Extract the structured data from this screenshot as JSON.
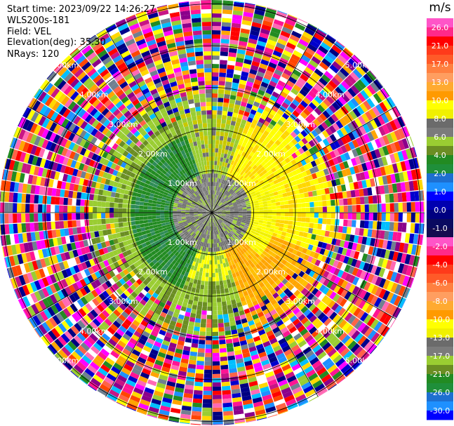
{
  "header": {
    "start_time": "Start time: 2023/09/22 14:26:27",
    "instrument": "WLS200s-181",
    "field": "Field: VEL",
    "elevation": "Elevation(deg): 35.30",
    "nrays": "NRays: 120"
  },
  "chart_data": {
    "type": "heatmap",
    "projection": "polar-ppi",
    "field": "VEL",
    "unit_label": "m/s",
    "n_rays": 120,
    "range_rings_km": [
      1.0,
      2.0,
      3.0,
      4.0,
      5.0
    ],
    "range_ring_labels": [
      "1.00km",
      "2.00km",
      "3.00km",
      "4.00km",
      "5.00km"
    ],
    "colorbar_ticks": [
      "26.0",
      "21.0",
      "17.0",
      "13.0",
      "10.0",
      "8.0",
      "6.0",
      "4.0",
      "2.0",
      "1.0",
      "0.0",
      "-1.0",
      "-2.0",
      "-4.0",
      "-6.0",
      "-8.0",
      "-10.0",
      "-13.0",
      "-17.0",
      "-21.0",
      "-26.0",
      "-30.0"
    ],
    "colorbar_colors": [
      "#ff55c8",
      "#ff2a8a",
      "#ff0000",
      "#ff3a1a",
      "#ff5a28",
      "#ff8040",
      "#ff9e60",
      "#ffaa30",
      "#ff9a00",
      "#ffff00",
      "#f0f000",
      "#6b6b6b",
      "#7b7b7b",
      "#9acd32",
      "#6b8e23",
      "#228b22",
      "#1f8f3a",
      "#1e6fd0",
      "#1e90ff",
      "#0000ff",
      "#0000b0",
      "#000080",
      "#0a0a60",
      "#140a50"
    ],
    "noise_palette": [
      "#ff1493",
      "#ff69b4",
      "#ff0000",
      "#ff4500",
      "#ffa500",
      "#ffd700",
      "#ffff00",
      "#9acd32",
      "#228b22",
      "#0000cd",
      "#1e90ff",
      "#000080",
      "#00008b",
      "#8b008b",
      "#ff00ff",
      "#c71585",
      "#708090",
      "#ffffff",
      "#00bfff",
      "#ff6347"
    ]
  }
}
